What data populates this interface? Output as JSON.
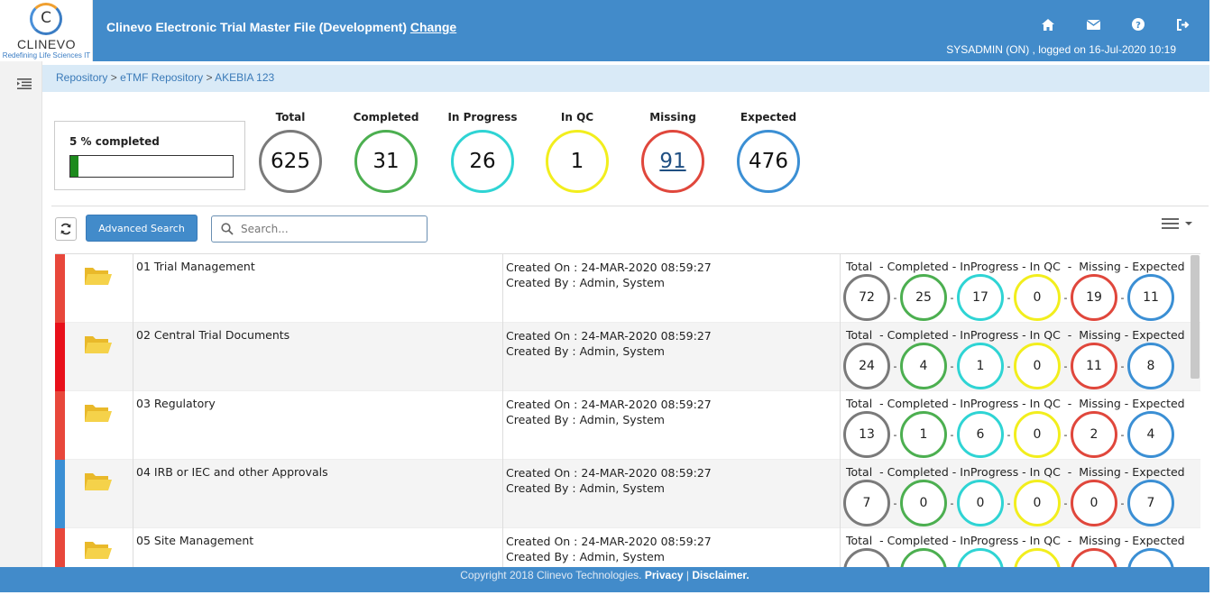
{
  "logo": {
    "name": "CLINEVO",
    "tagline": "Redefining Life Sciences IT",
    "glyph": "C"
  },
  "header": {
    "title": "Clinevo Electronic Trial Master File (Development)",
    "change_link": "Change",
    "user_info": "SYSADMIN (ON) , logged on 16-Jul-2020 10:19",
    "icons": [
      "home-icon",
      "envelope-icon",
      "help-icon",
      "logout-icon"
    ]
  },
  "breadcrumb": {
    "items": [
      "Repository",
      "eTMF Repository",
      "AKEBIA 123"
    ],
    "separator": ">"
  },
  "summary": {
    "progress_label": "5 % completed",
    "progress_fraction": 0.05,
    "stats": [
      {
        "label": "Total",
        "value": "625",
        "color": "#7a7a7a"
      },
      {
        "label": "Completed",
        "value": "31",
        "color": "#4caf50"
      },
      {
        "label": "In Progress",
        "value": "26",
        "color": "#2fd4d4"
      },
      {
        "label": "In QC",
        "value": "1",
        "color": "#f2ee1d"
      },
      {
        "label": "Missing",
        "value": "91",
        "color": "#e0473c"
      },
      {
        "label": "Expected",
        "value": "476",
        "color": "#3b8fd4"
      }
    ]
  },
  "toolbar": {
    "advanced_search": "Advanced Search",
    "search_placeholder": "Search..."
  },
  "table": {
    "stats_header": "Total  - Completed - InProgress - In QC  -  Missing - Expected",
    "created_on_prefix": "Created On : ",
    "created_by_prefix": "Created By : ",
    "rows": [
      {
        "name": "01 Trial Management",
        "created_on": "Created On : 24-MAR-2020 08:59:27",
        "created_by": "Created By : Admin, System",
        "stripe": "#e8473b",
        "stats": [
          "72",
          "25",
          "17",
          "0",
          "19",
          "11"
        ]
      },
      {
        "name": "02 Central Trial Documents",
        "created_on": "Created On : 24-MAR-2020 08:59:27",
        "created_by": "Created By : Admin, System",
        "stripe": "#e8101a",
        "stats": [
          "24",
          "4",
          "1",
          "0",
          "11",
          "8"
        ]
      },
      {
        "name": "03 Regulatory",
        "created_on": "Created On : 24-MAR-2020 08:59:27",
        "created_by": "Created By : Admin, System",
        "stripe": "#e8473b",
        "stats": [
          "13",
          "1",
          "6",
          "0",
          "2",
          "4"
        ]
      },
      {
        "name": "04 IRB or IEC and other Approvals",
        "created_on": "Created On : 24-MAR-2020 08:59:27",
        "created_by": "Created By : Admin, System",
        "stripe": "#3b8fd4",
        "stats": [
          "7",
          "0",
          "0",
          "0",
          "0",
          "7"
        ]
      },
      {
        "name": "05 Site Management",
        "created_on": "Created On : 24-MAR-2020 08:59:27",
        "created_by": "Created By : Admin, System",
        "stripe": "#e8473b",
        "stats": [
          "",
          "",
          "",
          "",
          "",
          ""
        ]
      }
    ]
  },
  "footer": {
    "copyright": "Copyright 2018 Clinevo Technologies. ",
    "privacy": "Privacy",
    "divider": "|",
    "disclaimer": "Disclaimer."
  }
}
